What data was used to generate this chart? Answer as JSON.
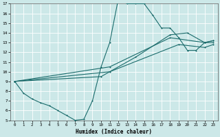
{
  "title": "",
  "xlabel": "Humidex (Indice chaleur)",
  "xlim": [
    -0.5,
    23.5
  ],
  "ylim": [
    5,
    17
  ],
  "yticks": [
    5,
    6,
    7,
    8,
    9,
    10,
    11,
    12,
    13,
    14,
    15,
    16,
    17
  ],
  "xticks": [
    0,
    1,
    2,
    3,
    4,
    5,
    6,
    7,
    8,
    9,
    10,
    11,
    12,
    13,
    14,
    15,
    16,
    17,
    18,
    19,
    20,
    21,
    22,
    23
  ],
  "bg_color": "#cce8e8",
  "grid_color": "#aacccc",
  "line_color": "#1a6b6b",
  "line1_x": [
    0,
    1,
    2,
    3,
    4,
    5,
    6,
    7,
    8,
    9,
    10,
    11,
    12,
    13,
    14,
    15,
    16,
    17,
    18,
    19,
    20,
    21,
    22,
    23
  ],
  "line1_y": [
    9.0,
    7.8,
    7.2,
    6.8,
    6.5,
    6.0,
    5.5,
    5.0,
    5.1,
    7.0,
    10.5,
    13.0,
    17.5,
    17.0,
    17.0,
    17.0,
    15.8,
    14.5,
    14.5,
    13.5,
    12.2,
    12.2,
    13.0,
    13.0
  ],
  "line2_x": [
    0,
    11,
    18,
    22,
    23
  ],
  "line2_y": [
    9.0,
    10.5,
    13.5,
    13.0,
    13.2
  ],
  "line3_x": [
    0,
    11,
    19,
    22,
    23
  ],
  "line3_y": [
    9.0,
    10.0,
    12.8,
    12.5,
    12.8
  ],
  "line4_x": [
    0,
    10,
    14,
    18,
    20,
    22,
    23
  ],
  "line4_y": [
    9.0,
    9.5,
    11.5,
    13.8,
    14.0,
    13.0,
    13.2
  ]
}
